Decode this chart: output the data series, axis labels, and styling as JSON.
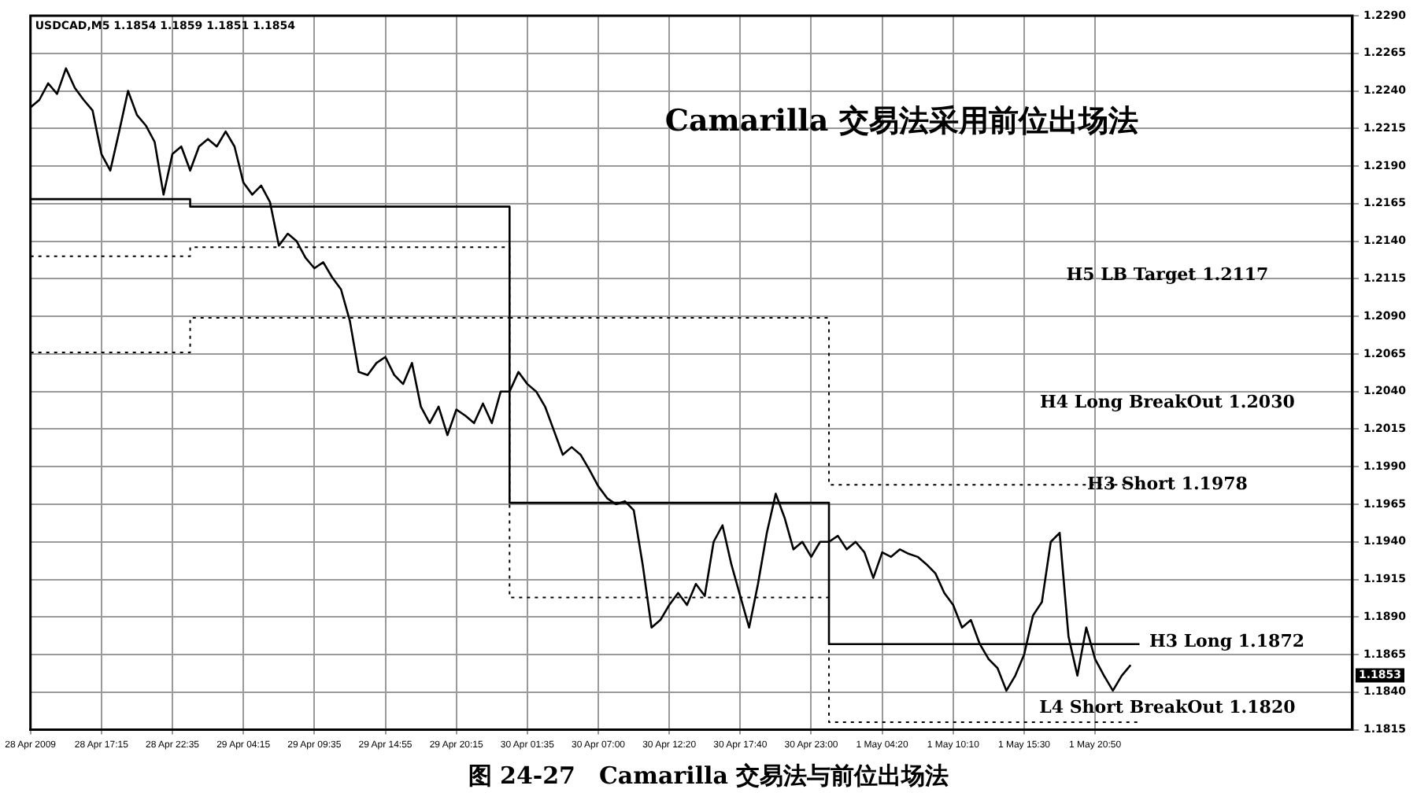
{
  "chart_data": {
    "type": "line",
    "title": "Camarilla 交易法采用前位出场法",
    "subtitle": "USDCAD,M5 1.1854 1.1859 1.1851 1.1854",
    "categories": [
      "28 Apr 2009",
      null,
      null,
      null,
      null,
      null,
      null,
      null,
      "28 Apr 17:15",
      null,
      null,
      null,
      null,
      null,
      null,
      null,
      "28 Apr 22:35",
      null,
      null,
      null,
      null,
      null,
      null,
      null,
      "29 Apr 04:15",
      null,
      null,
      null,
      null,
      null,
      null,
      null,
      "29 Apr 09:35",
      null,
      null,
      null,
      null,
      null,
      null,
      null,
      "29 Apr 14:55",
      null,
      null,
      null,
      null,
      null,
      null,
      null,
      "29 Apr 20:15",
      null,
      null,
      null,
      null,
      null,
      null,
      null,
      "30 Apr 01:35",
      null,
      null,
      null,
      null,
      null,
      null,
      null,
      "30 Apr 07:00",
      null,
      null,
      null,
      null,
      null,
      null,
      null,
      "30 Apr 12:20",
      null,
      null,
      null,
      null,
      null,
      null,
      null,
      "30 Apr 17:40",
      null,
      null,
      null,
      null,
      null,
      null,
      null,
      "30 Apr 23:00",
      null,
      null,
      null,
      null,
      null,
      null,
      null,
      "1 May 04:20",
      null,
      null,
      null,
      null,
      null,
      null,
      null,
      "1 May 10:10",
      null,
      null,
      null,
      null,
      null,
      null,
      null,
      "1 May 15:30",
      null,
      null,
      null,
      null,
      null,
      null,
      null,
      "1 May 20:50",
      null,
      null,
      null,
      null,
      null,
      null,
      null,
      null,
      null,
      null,
      null,
      null,
      null,
      null,
      null,
      null,
      null,
      null,
      null,
      null,
      null,
      null,
      null,
      null,
      null,
      null,
      null,
      null,
      null
    ],
    "series": [
      {
        "color": "#000000",
        "line_style": "solid",
        "values": [
          1.2229,
          1.2234,
          1.2245,
          1.2238,
          1.2255,
          1.2242,
          1.2234,
          1.2227,
          1.2198,
          1.2187,
          1.2213,
          1.224,
          1.2224,
          1.2217,
          1.2206,
          1.2171,
          1.2198,
          1.2203,
          1.2187,
          1.2203,
          1.2208,
          1.2203,
          1.2213,
          1.2203,
          1.2179,
          1.2171,
          1.2177,
          1.2166,
          1.2137,
          1.2145,
          1.214,
          1.2129,
          1.2122,
          1.2126,
          1.2116,
          1.2108,
          1.2087,
          1.2053,
          1.2051,
          1.2059,
          1.2063,
          1.2051,
          1.2045,
          1.2059,
          1.203,
          1.2019,
          1.203,
          1.2011,
          1.2028,
          1.2024,
          1.2019,
          1.2032,
          1.2019,
          1.204,
          1.204,
          1.2053,
          1.2045,
          1.204,
          1.203,
          1.2014,
          1.1998,
          1.2003,
          1.1998,
          1.1988,
          1.1977,
          1.1969,
          1.1965,
          1.1967,
          1.1961,
          1.1925,
          1.1883,
          1.1888,
          1.1898,
          1.1906,
          1.1898,
          1.1912,
          1.1904,
          1.194,
          1.1951,
          1.1925,
          1.1904,
          1.1883,
          1.1912,
          1.1946,
          1.1972,
          1.1956,
          1.1935,
          1.194,
          1.193,
          1.194,
          1.194,
          1.1944,
          1.1935,
          1.194,
          1.1933,
          1.1916,
          1.1933,
          1.193,
          1.1935,
          1.1932,
          1.193,
          1.1925,
          1.1919,
          1.1906,
          1.1898,
          1.1883,
          1.1888,
          1.1872,
          1.1862,
          1.1856,
          1.1841,
          1.1851,
          1.1865,
          1.1891,
          1.19,
          1.194,
          1.1946,
          1.1877,
          1.1851,
          1.1883,
          1.1862,
          1.1851,
          1.1841,
          1.1851,
          1.1858,
          null,
          null,
          null,
          null,
          null,
          null,
          null,
          null,
          null,
          null,
          null,
          null,
          null,
          null,
          null,
          null,
          null,
          null,
          null,
          null,
          null,
          null,
          null,
          null,
          null
        ]
      },
      {
        "type": "step",
        "color": "#000000",
        "line_style": "solid",
        "values": [
          1.2168,
          1.2168,
          1.2168,
          1.2168,
          1.2168,
          1.2168,
          1.2168,
          1.2168,
          1.2168,
          1.2168,
          1.2168,
          1.2168,
          1.2168,
          1.2168,
          1.2168,
          1.2168,
          1.2168,
          1.2168,
          1.2168,
          1.2163,
          1.2163,
          1.2163,
          1.2163,
          1.2163,
          1.2163,
          1.2163,
          1.2163,
          1.2163,
          1.2163,
          1.2163,
          1.2163,
          1.2163,
          1.2163,
          1.2163,
          1.2163,
          1.2163,
          1.2163,
          1.2163,
          1.2163,
          1.2163,
          1.2163,
          1.2163,
          1.2163,
          1.2163,
          1.2163,
          1.2163,
          1.2163,
          1.2163,
          1.2163,
          1.2163,
          1.2163,
          1.2163,
          1.2163,
          1.2163,
          1.2163,
          1.1966,
          1.1966,
          1.1966,
          1.1966,
          1.1966,
          1.1966,
          1.1966,
          1.1966,
          1.1966,
          1.1966,
          1.1966,
          1.1966,
          1.1966,
          1.1966,
          1.1966,
          1.1966,
          1.1966,
          1.1966,
          1.1966,
          1.1966,
          1.1966,
          1.1966,
          1.1966,
          1.1966,
          1.1966,
          1.1966,
          1.1966,
          1.1966,
          1.1966,
          1.1966,
          1.1966,
          1.1966,
          1.1966,
          1.1966,
          1.1966,
          1.1966,
          1.1872,
          1.1872,
          1.1872,
          1.1872,
          1.1872,
          1.1872,
          1.1872,
          1.1872,
          1.1872,
          1.1872,
          1.1872,
          1.1872,
          1.1872,
          1.1872,
          1.1872,
          1.1872,
          1.1872,
          1.1872,
          1.1872,
          1.1872,
          1.1872,
          1.1872,
          1.1872,
          1.1872,
          1.1872,
          1.1872,
          1.1872,
          1.1872,
          1.1872,
          1.1872,
          1.1872,
          1.1872,
          1.1872,
          1.1872,
          1.1872,
          null,
          null,
          null,
          null,
          null,
          null,
          null,
          null,
          null,
          null,
          null,
          null,
          null,
          null,
          null,
          null,
          null,
          null,
          null,
          null,
          null,
          null,
          null,
          null
        ]
      },
      {
        "type": "step",
        "color": "#000000",
        "line_style": "dotted",
        "values": [
          1.213,
          1.213,
          1.213,
          1.213,
          1.213,
          1.213,
          1.213,
          1.213,
          1.213,
          1.213,
          1.213,
          1.213,
          1.213,
          1.213,
          1.213,
          1.213,
          1.213,
          1.213,
          1.213,
          1.2136,
          1.2136,
          1.2136,
          1.2136,
          1.2136,
          1.2136,
          1.2136,
          1.2136,
          1.2136,
          1.2136,
          1.2136,
          1.2136,
          1.2136,
          1.2136,
          1.2136,
          1.2136,
          1.2136,
          1.2136,
          1.2136,
          1.2136,
          1.2136,
          1.2136,
          1.2136,
          1.2136,
          1.2136,
          1.2136,
          1.2136,
          1.2136,
          1.2136,
          1.2136,
          1.2136,
          1.2136,
          1.2136,
          1.2136,
          1.2136,
          1.2136,
          1.2089,
          1.2089,
          1.2089,
          1.2089,
          1.2089,
          1.2089,
          1.2089,
          1.2089,
          1.2089,
          1.2089,
          1.2089,
          1.2089,
          1.2089,
          1.2089,
          1.2089,
          1.2089,
          1.2089,
          1.2089,
          1.2089,
          1.2089,
          1.2089,
          1.2089,
          1.2089,
          1.2089,
          1.2089,
          1.2089,
          1.2089,
          1.2089,
          1.2089,
          1.2089,
          1.2089,
          1.2089,
          1.2089,
          1.2089,
          1.2089,
          1.2089,
          1.1978,
          1.1978,
          1.1978,
          1.1978,
          1.1978,
          1.1978,
          1.1978,
          1.1978,
          1.1978,
          1.1978,
          1.1978,
          1.1978,
          1.1978,
          1.1978,
          1.1978,
          1.1978,
          1.1978,
          1.1978,
          1.1978,
          1.1978,
          1.1978,
          1.1978,
          1.1978,
          1.1978,
          1.1978,
          1.1978,
          1.1978,
          1.1978,
          1.1978,
          1.1978,
          1.1978,
          1.1978,
          1.1978,
          1.1978,
          1.1978,
          null,
          null,
          null,
          null,
          null,
          null,
          null,
          null,
          null,
          null,
          null,
          null,
          null,
          null,
          null,
          null,
          null,
          null,
          null,
          null,
          null,
          null,
          null,
          null
        ]
      },
      {
        "type": "step",
        "color": "#000000",
        "line_style": "dotted",
        "values": [
          1.2066,
          1.2066,
          1.2066,
          1.2066,
          1.2066,
          1.2066,
          1.2066,
          1.2066,
          1.2066,
          1.2066,
          1.2066,
          1.2066,
          1.2066,
          1.2066,
          1.2066,
          1.2066,
          1.2066,
          1.2066,
          1.2066,
          1.2089,
          1.2089,
          1.2089,
          1.2089,
          1.2089,
          1.2089,
          1.2089,
          1.2089,
          1.2089,
          1.2089,
          1.2089,
          1.2089,
          1.2089,
          1.2089,
          1.2089,
          1.2089,
          1.2089,
          1.2089,
          1.2089,
          1.2089,
          1.2089,
          1.2089,
          1.2089,
          1.2089,
          1.2089,
          1.2089,
          1.2089,
          1.2089,
          1.2089,
          1.2089,
          1.2089,
          1.2089,
          1.2089,
          1.2089,
          1.2089,
          1.2089,
          1.1903,
          1.1903,
          1.1903,
          1.1903,
          1.1903,
          1.1903,
          1.1903,
          1.1903,
          1.1903,
          1.1903,
          1.1903,
          1.1903,
          1.1903,
          1.1903,
          1.1903,
          1.1903,
          1.1903,
          1.1903,
          1.1903,
          1.1903,
          1.1903,
          1.1903,
          1.1903,
          1.1903,
          1.1903,
          1.1903,
          1.1903,
          1.1903,
          1.1903,
          1.1903,
          1.1903,
          1.1903,
          1.1903,
          1.1903,
          1.1903,
          1.1903,
          1.182,
          1.182,
          1.182,
          1.182,
          1.182,
          1.182,
          1.182,
          1.182,
          1.182,
          1.182,
          1.182,
          1.182,
          1.182,
          1.182,
          1.182,
          1.182,
          1.182,
          1.182,
          1.182,
          1.182,
          1.182,
          1.182,
          1.182,
          1.182,
          1.182,
          1.182,
          1.182,
          1.182,
          1.182,
          1.182,
          1.182,
          1.182,
          1.182,
          1.182,
          1.182,
          null,
          null,
          null,
          null,
          null,
          null,
          null,
          null,
          null,
          null,
          null,
          null,
          null,
          null,
          null,
          null,
          null,
          null,
          null,
          null,
          null,
          null,
          null,
          null
        ]
      }
    ],
    "ylim": [
      1.1815,
      1.229
    ],
    "yticks": [
      {
        "value": 1.229,
        "label": "1.2290"
      },
      1.2265,
      {
        "value": 1.224,
        "label": "1.2240"
      },
      1.2215,
      {
        "value": 1.219,
        "label": "1.2190"
      },
      1.2165,
      {
        "value": 1.214,
        "label": "1.2140"
      },
      1.2115,
      {
        "value": 1.209,
        "label": "1.2090"
      },
      1.2065,
      {
        "value": 1.204,
        "label": "1.2040"
      },
      1.2015,
      {
        "value": 1.199,
        "label": "1.1990"
      },
      1.1965,
      {
        "value": 1.194,
        "label": "1.1940"
      },
      1.1915,
      {
        "value": 1.189,
        "label": "1.1890"
      },
      1.1865,
      {
        "value": 1.184,
        "label": "1.1840"
      },
      1.1815
    ],
    "grid": true,
    "legend": false,
    "marker": "none",
    "annotations": [
      "H5 LB Target 1.2117",
      "H4 Long BreakOut 1.2030",
      "H3 Short 1.1978",
      "H3 Long 1.1872",
      "L4 Short BreakOut 1.1820",
      "1.1853",
      "图 24-27　Camarilla 交易法与前位出场法"
    ]
  }
}
